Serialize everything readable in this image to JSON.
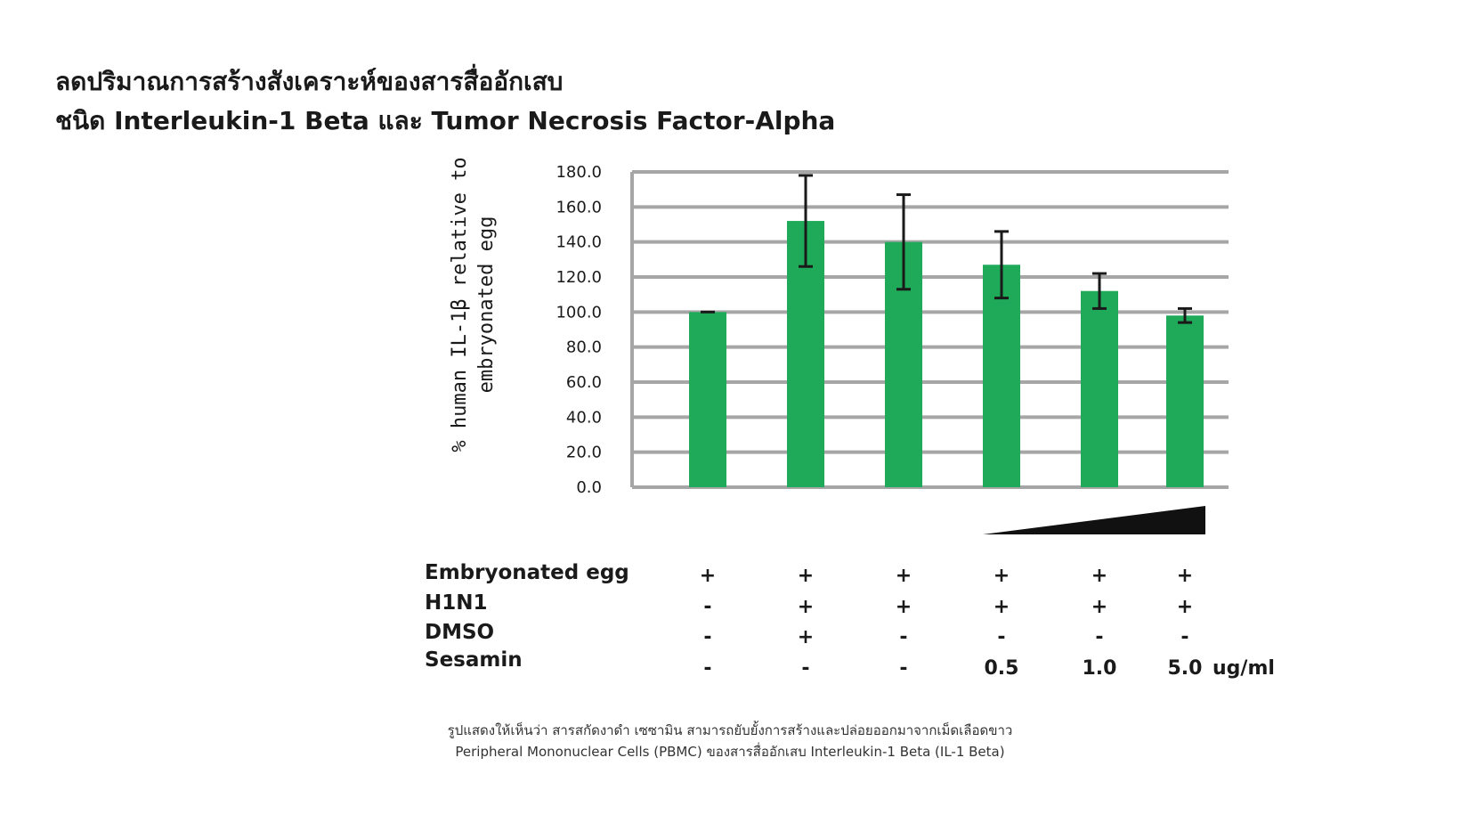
{
  "title_line1": "ลดปริมาณการสร้างสังเคราะห์ของสารสื่ออักเสบ",
  "title_line2": "ชนิด Interleukin-1 Beta และ Tumor Necrosis Factor-Alpha",
  "chart_data": {
    "type": "bar",
    "ylabel_line1": "% human IL-1β relative to",
    "ylabel_line2": "embryonated egg",
    "ylim": [
      0,
      180
    ],
    "yticks": [
      "0.0",
      "20.0",
      "40.0",
      "60.0",
      "80.0",
      "100.0",
      "120.0",
      "140.0",
      "160.0",
      "180.0"
    ],
    "grid": true,
    "values": [
      100,
      152,
      140,
      127,
      112,
      98
    ],
    "errors": [
      0,
      26,
      27,
      19,
      10,
      4
    ],
    "bar_color": "#1faa5a",
    "grid_color": "#a6a6a6",
    "error_color": "#1a1a1a"
  },
  "conditions": {
    "rows": [
      {
        "label": "Embryonated  egg",
        "cells": [
          "+",
          "+",
          "+",
          "+",
          "+",
          "+"
        ]
      },
      {
        "label": "H1N1",
        "cells": [
          "-",
          "+",
          "+",
          "+",
          "+",
          "+"
        ]
      },
      {
        "label": "DMSO",
        "cells": [
          "-",
          "+",
          "-",
          "-",
          "-",
          "-"
        ]
      },
      {
        "label": "Sesamin",
        "cells": [
          "-",
          "-",
          "-",
          "0.5",
          "1.0",
          "5.0"
        ]
      }
    ],
    "unit": "ug/ml"
  },
  "caption": {
    "line1": "รูปแสดงให้เห็นว่า สารสกัดงาดำ เซซามิน สามารถยับยั้งการสร้างและปล่อยออกมาจากเม็ดเลือดขาว",
    "line2": "Peripheral Mononuclear Cells (PBMC) ของสารสื่ออักเสบ Interleukin-1 Beta (IL-1 Beta)"
  }
}
